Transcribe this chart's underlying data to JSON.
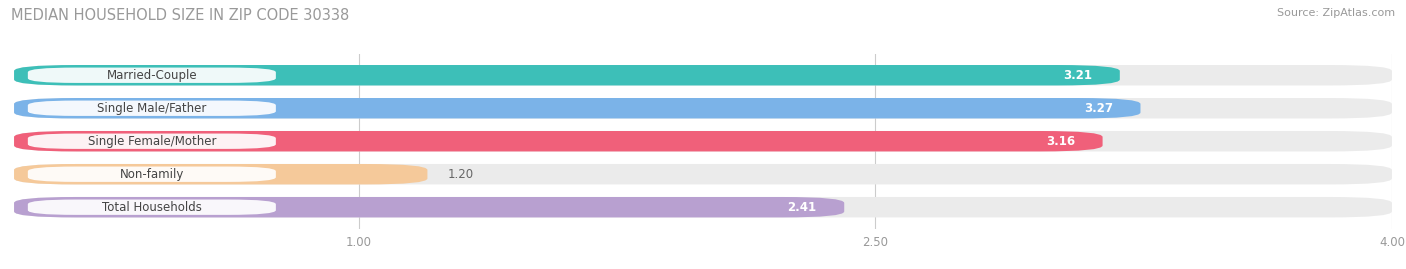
{
  "title": "MEDIAN HOUSEHOLD SIZE IN ZIP CODE 30338",
  "source": "Source: ZipAtlas.com",
  "categories": [
    "Married-Couple",
    "Single Male/Father",
    "Single Female/Mother",
    "Non-family",
    "Total Households"
  ],
  "values": [
    3.21,
    3.27,
    3.16,
    1.2,
    2.41
  ],
  "bar_colors": [
    "#3DBFB8",
    "#7BB3E8",
    "#F0607A",
    "#F5C99A",
    "#B8A0D0"
  ],
  "bar_bg_color": "#EBEBEB",
  "xmin": 0.0,
  "xmax": 4.0,
  "xticks": [
    1.0,
    2.5,
    4.0
  ],
  "label_fontsize": 8.5,
  "value_fontsize": 8.5,
  "title_fontsize": 10.5,
  "source_fontsize": 8,
  "bar_height": 0.62,
  "value_inside_threshold": 1.8,
  "figsize": [
    14.06,
    2.69
  ],
  "dpi": 100
}
